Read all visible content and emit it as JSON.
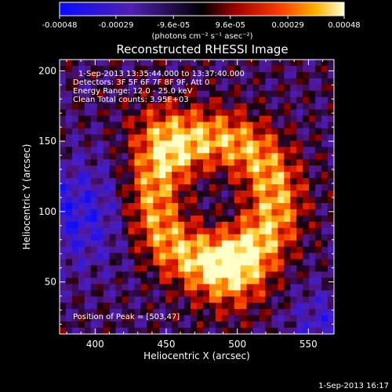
{
  "chart_data": {
    "type": "heatmap",
    "title": "Reconstructed RHESSI Image",
    "xlabel": "Heliocentric X (arcsec)",
    "ylabel": "Heliocentric Y (arcsec)",
    "xlim": [
      375,
      568
    ],
    "ylim": [
      13,
      208
    ],
    "xticks": [
      400,
      450,
      500,
      550
    ],
    "yticks": [
      50,
      100,
      150,
      200
    ],
    "colorbar": {
      "unit_label": "(photons cm⁻² s⁻¹ asec⁻²)",
      "ticks": [
        "-0.00048",
        "-0.00029",
        "-9.6e-05",
        "9.6e-05",
        "0.00029",
        "0.00048"
      ],
      "range": [
        -0.00048,
        0.00048
      ]
    },
    "annotations": [
      "1-Sep-2013 13:35:44.000 to 13:37:40.000",
      "Detectors: 3F 5F 6F 7F 8F 9F, Att 0",
      "Energy Range: 12.0 - 25.0 keV",
      "Clean     Total counts: 3.95E+03"
    ],
    "peak_text": "Position of Peak = [503,47]",
    "peak_position": [
      503,
      47
    ],
    "grid": false,
    "colors": {
      "negative_low": "#1010ff",
      "negative_mid": "#6020a0",
      "zero": "#000000",
      "positive_mid": "#e02000",
      "positive_high": "#ffffc0"
    }
  },
  "timestamp": "1-Sep-2013 16:17"
}
